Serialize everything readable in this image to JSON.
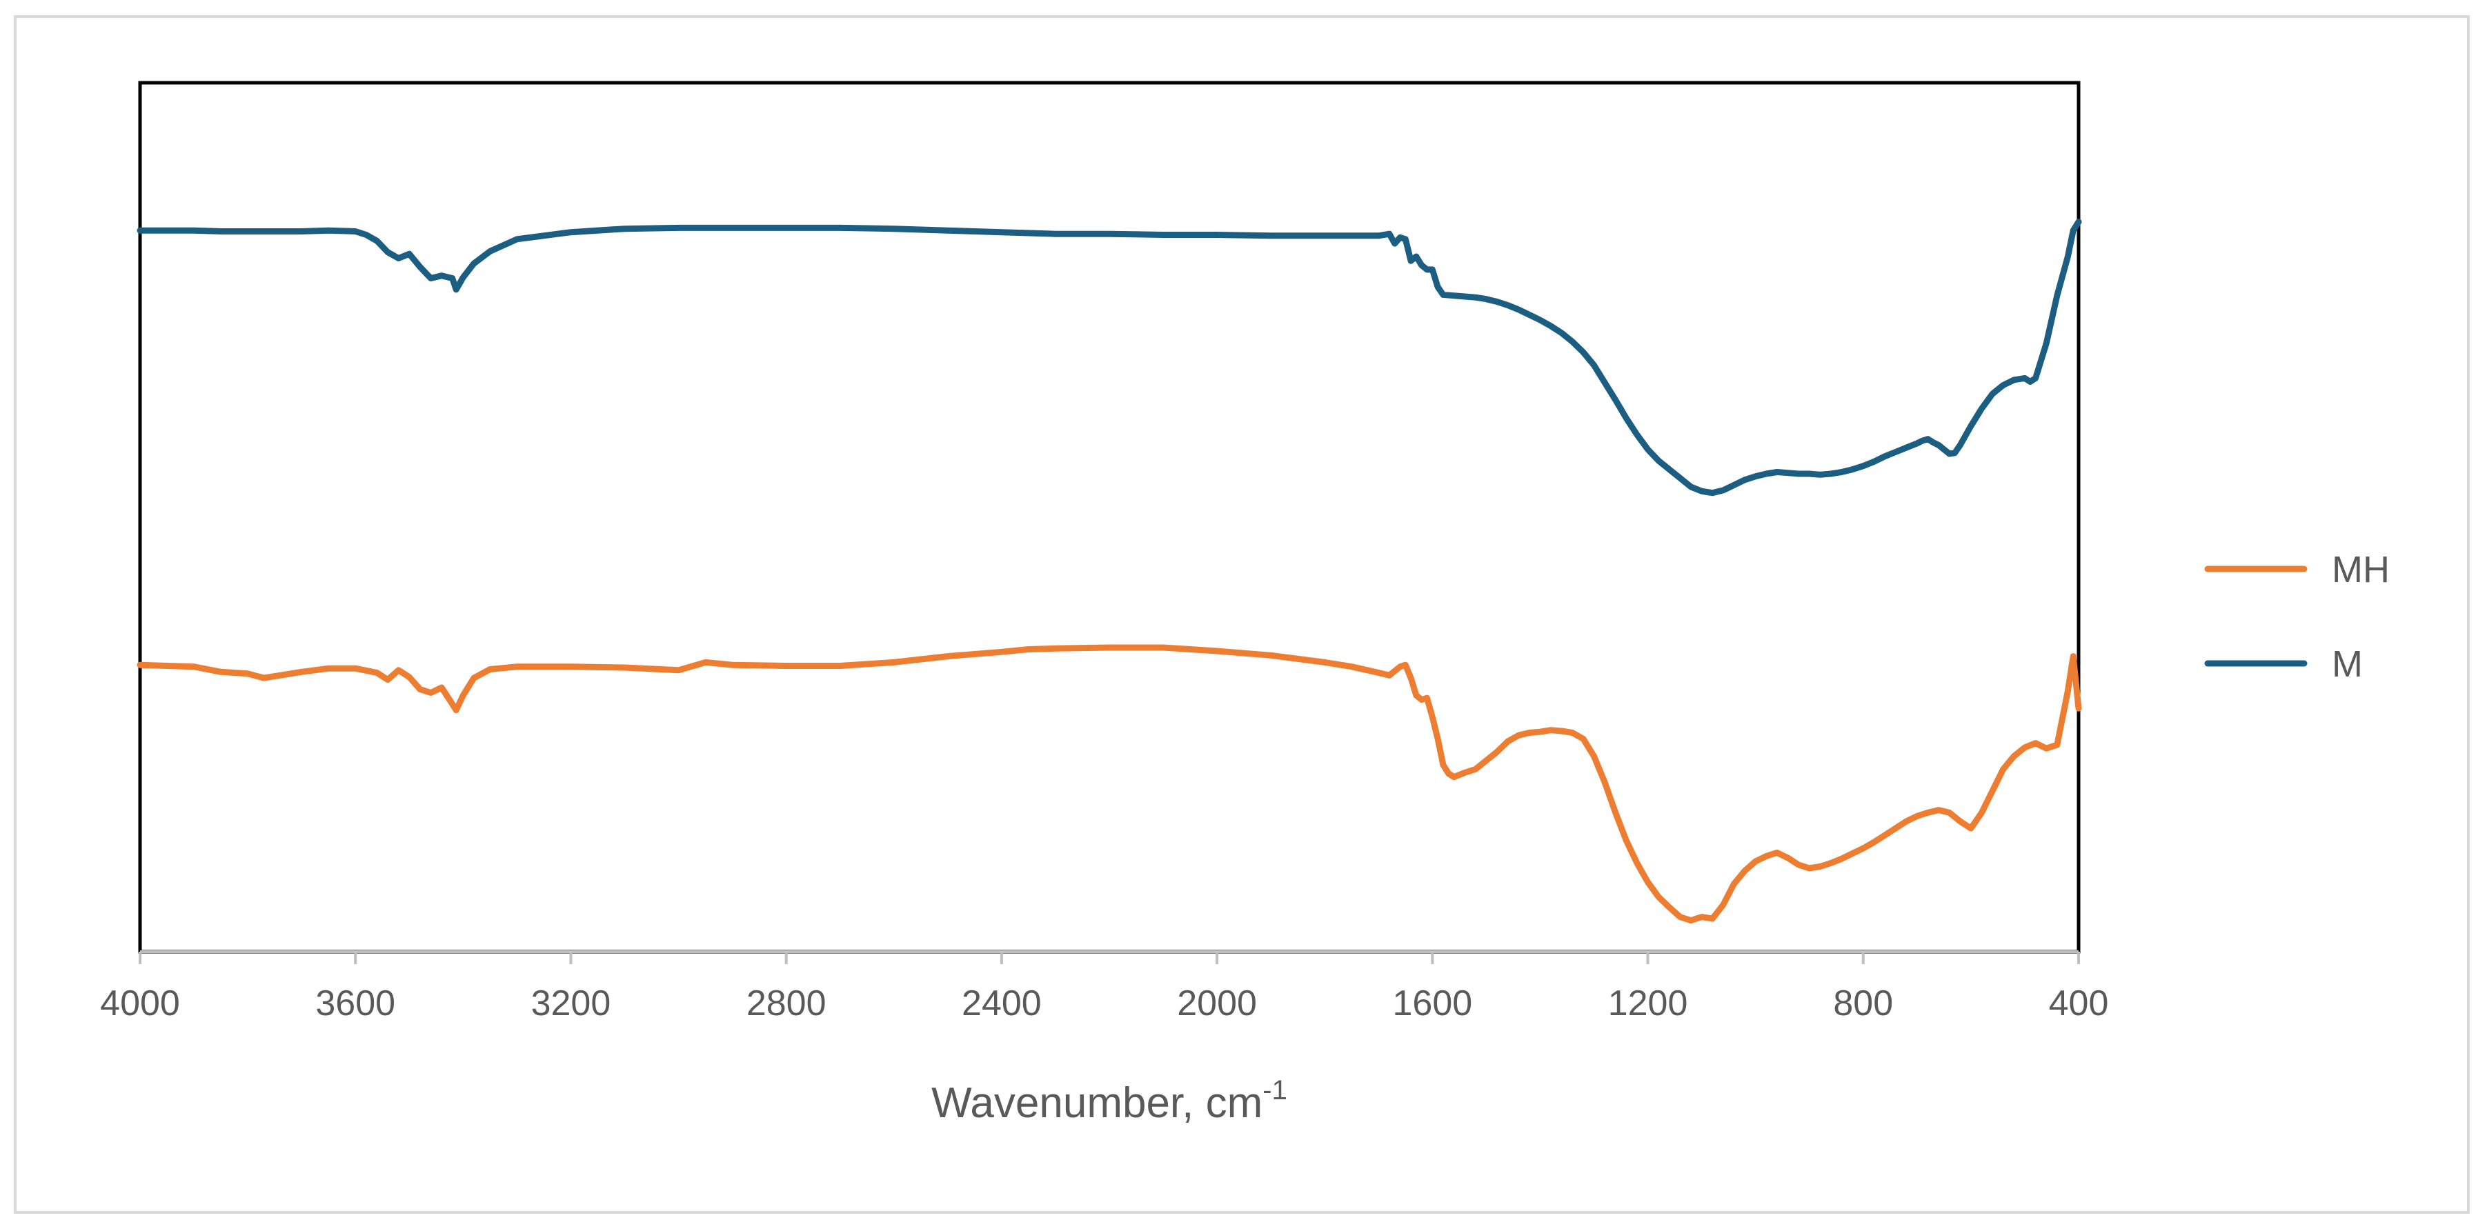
{
  "chart_data": {
    "type": "line",
    "xlabel": "Wavenumber, cm",
    "xlabel_superscript": "-1",
    "xlim": [
      4000,
      400
    ],
    "x_reversed": true,
    "xticks": [
      4000,
      3600,
      3200,
      2800,
      2400,
      2000,
      1600,
      1200,
      800,
      400
    ],
    "xtick_labels": [
      "4000",
      "3600",
      "3200",
      "2800",
      "2400",
      "2000",
      "1600",
      "1200",
      "800",
      "400"
    ],
    "yaxis_visible": false,
    "ylim": [
      0,
      100
    ],
    "grid": false,
    "legend_position": "right",
    "series": [
      {
        "name": "MH",
        "color": "#ED7D31",
        "x": [
          4000,
          3900,
          3850,
          3800,
          3770,
          3700,
          3650,
          3600,
          3560,
          3540,
          3520,
          3500,
          3480,
          3460,
          3440,
          3420,
          3413,
          3400,
          3380,
          3350,
          3300,
          3200,
          3100,
          3000,
          2950,
          2900,
          2800,
          2700,
          2600,
          2500,
          2400,
          2350,
          2300,
          2200,
          2100,
          2000,
          1900,
          1800,
          1750,
          1700,
          1680,
          1660,
          1650,
          1640,
          1630,
          1620,
          1610,
          1600,
          1590,
          1580,
          1570,
          1560,
          1540,
          1520,
          1500,
          1480,
          1460,
          1440,
          1420,
          1400,
          1380,
          1360,
          1340,
          1320,
          1300,
          1280,
          1260,
          1240,
          1220,
          1200,
          1180,
          1160,
          1140,
          1120,
          1100,
          1080,
          1060,
          1040,
          1020,
          1000,
          980,
          960,
          940,
          920,
          900,
          880,
          860,
          840,
          820,
          800,
          780,
          760,
          740,
          720,
          700,
          680,
          660,
          640,
          620,
          600,
          580,
          560,
          540,
          520,
          500,
          480,
          460,
          440,
          420,
          410,
          400
        ],
        "y": [
          33,
          32.8,
          32.2,
          32,
          31.5,
          32.2,
          32.6,
          32.6,
          32.1,
          31.3,
          32.4,
          31.6,
          30.2,
          29.8,
          30.4,
          28.5,
          27.8,
          29.5,
          31.5,
          32.5,
          32.8,
          32.8,
          32.7,
          32.4,
          33.3,
          33.0,
          32.9,
          32.9,
          33.3,
          34.0,
          34.5,
          34.8,
          34.9,
          35.0,
          35.0,
          34.6,
          34.1,
          33.3,
          32.8,
          32.1,
          31.8,
          32.8,
          33.0,
          31.5,
          29.5,
          29.0,
          29.2,
          27.0,
          24.5,
          21.5,
          20.5,
          20.1,
          20.6,
          21.0,
          22.0,
          23.0,
          24.2,
          24.9,
          25.2,
          25.3,
          25.5,
          25.4,
          25.2,
          24.5,
          22.5,
          19.5,
          16.0,
          12.8,
          10.2,
          8.0,
          6.3,
          5.1,
          4.0,
          3.6,
          4.0,
          3.8,
          5.4,
          7.8,
          9.3,
          10.4,
          11.0,
          11.4,
          10.8,
          10.0,
          9.6,
          9.8,
          10.2,
          10.7,
          11.3,
          11.9,
          12.6,
          13.4,
          14.2,
          15.0,
          15.6,
          16.0,
          16.3,
          16.0,
          15.0,
          14.2,
          16.0,
          18.5,
          21.0,
          22.5,
          23.5,
          24.0,
          23.4,
          23.8,
          30.0,
          34.0,
          28.0
        ]
      },
      {
        "name": "M",
        "color": "#1B5E82",
        "x": [
          4000,
          3900,
          3850,
          3800,
          3750,
          3700,
          3650,
          3600,
          3580,
          3560,
          3540,
          3520,
          3500,
          3480,
          3460,
          3440,
          3420,
          3413,
          3400,
          3380,
          3350,
          3300,
          3200,
          3100,
          3000,
          2900,
          2800,
          2700,
          2600,
          2500,
          2400,
          2300,
          2200,
          2100,
          2000,
          1900,
          1800,
          1700,
          1680,
          1670,
          1660,
          1650,
          1640,
          1630,
          1620,
          1610,
          1600,
          1590,
          1580,
          1560,
          1540,
          1520,
          1500,
          1480,
          1460,
          1440,
          1420,
          1400,
          1380,
          1360,
          1340,
          1320,
          1300,
          1280,
          1260,
          1240,
          1220,
          1200,
          1180,
          1160,
          1140,
          1120,
          1100,
          1090,
          1080,
          1060,
          1040,
          1020,
          1000,
          980,
          960,
          940,
          920,
          900,
          880,
          860,
          840,
          820,
          800,
          780,
          760,
          740,
          720,
          700,
          690,
          680,
          670,
          660,
          650,
          640,
          630,
          620,
          600,
          580,
          560,
          540,
          520,
          500,
          490,
          480,
          460,
          440,
          420,
          410,
          400
        ],
        "y": [
          83.0,
          83.0,
          82.9,
          82.9,
          82.9,
          82.9,
          83.0,
          82.9,
          82.5,
          81.8,
          80.5,
          79.8,
          80.3,
          78.8,
          77.5,
          77.8,
          77.5,
          76.2,
          77.6,
          79.2,
          80.6,
          82.0,
          82.8,
          83.2,
          83.3,
          83.3,
          83.3,
          83.3,
          83.2,
          83.0,
          82.8,
          82.6,
          82.6,
          82.5,
          82.5,
          82.4,
          82.4,
          82.4,
          82.6,
          81.5,
          82.2,
          82.0,
          79.5,
          80.0,
          79.0,
          78.5,
          78.5,
          76.5,
          75.6,
          75.5,
          75.4,
          75.3,
          75.1,
          74.8,
          74.4,
          73.9,
          73.3,
          72.7,
          72.0,
          71.2,
          70.2,
          69.0,
          67.5,
          65.5,
          63.5,
          61.4,
          59.5,
          57.8,
          56.5,
          55.5,
          54.5,
          53.5,
          53.0,
          52.9,
          52.8,
          53.1,
          53.7,
          54.3,
          54.7,
          55.0,
          55.2,
          55.1,
          55.0,
          55.0,
          54.9,
          55.0,
          55.2,
          55.5,
          55.9,
          56.4,
          57.0,
          57.5,
          58.0,
          58.5,
          58.8,
          59.0,
          58.6,
          58.3,
          57.8,
          57.3,
          57.4,
          58.3,
          60.5,
          62.5,
          64.2,
          65.2,
          65.8,
          66.0,
          65.6,
          66.0,
          70.0,
          75.5,
          80.0,
          83.0,
          84.0
        ]
      }
    ]
  }
}
